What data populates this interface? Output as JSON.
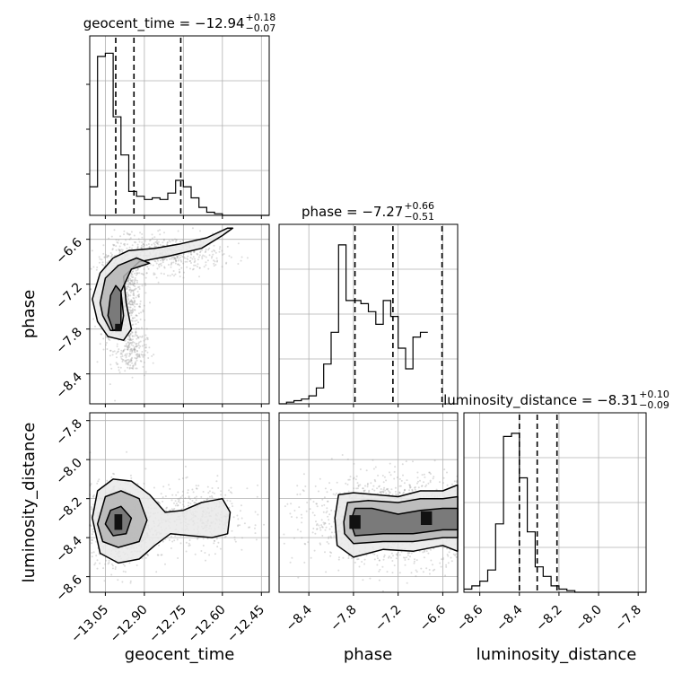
{
  "chart_data": {
    "type": "corner",
    "grid": true,
    "parameters": [
      {
        "name": "geocent_time",
        "range": [
          -13.11,
          -12.42
        ],
        "ticks": [
          -13.05,
          -12.9,
          -12.75,
          -12.6,
          -12.45
        ],
        "tick_labels": [
          "−13.05",
          "−12.90",
          "−12.75",
          "−12.60",
          "−12.45"
        ]
      },
      {
        "name": "phase",
        "range": [
          -8.8,
          -6.4
        ],
        "ticks": [
          -8.4,
          -7.8,
          -7.2,
          -6.6
        ],
        "tick_labels": [
          "−8.4",
          "−7.8",
          "−7.2",
          "−6.6"
        ]
      },
      {
        "name": "luminosity_distance",
        "range": [
          -8.68,
          -7.76
        ],
        "ticks": [
          -8.6,
          -8.4,
          -8.2,
          -8.0,
          -7.8
        ],
        "tick_labels": [
          "−8.6",
          "−8.4",
          "−8.2",
          "−8.0",
          "−7.8"
        ]
      }
    ],
    "titles": [
      {
        "main": "geocent_time = −12.94",
        "sup": "+0.18",
        "sub": "−0.07"
      },
      {
        "main": "phase = −7.27",
        "sup": "+0.66",
        "sub": "−0.51"
      },
      {
        "main": "luminosity_distance = −8.31",
        "sup": "+0.10",
        "sub": "−0.09"
      }
    ],
    "axis_labels": {
      "x": [
        "geocent_time",
        "phase",
        "luminosity_distance"
      ],
      "y": [
        "phase",
        "luminosity_distance"
      ]
    },
    "histograms": [
      {
        "param": "geocent_time",
        "bin_edges_start": -13.11,
        "bin_width": 0.03,
        "counts": [
          0.18,
          1.0,
          1.02,
          0.62,
          0.38,
          0.15,
          0.12,
          0.1,
          0.11,
          0.1,
          0.14,
          0.22,
          0.18,
          0.11,
          0.05,
          0.02,
          0.01,
          0,
          0,
          0,
          0,
          0,
          0
        ],
        "quantiles": [
          -13.01,
          -12.94,
          -12.76
        ]
      },
      {
        "param": "phase",
        "bin_edges_start": -8.8,
        "bin_width": 0.1,
        "counts": [
          0,
          0.01,
          0.02,
          0.03,
          0.05,
          0.1,
          0.25,
          0.45,
          1.0,
          0.65,
          0.65,
          0.63,
          0.58,
          0.5,
          0.65,
          0.55,
          0.35,
          0.22,
          0.42,
          0.45
        ],
        "quantiles": [
          -7.78,
          -7.27,
          -6.61
        ]
      },
      {
        "param": "luminosity_distance",
        "bin_edges_start": -8.68,
        "bin_width": 0.04,
        "counts": [
          0.02,
          0.04,
          0.07,
          0.14,
          0.43,
          0.98,
          1.0,
          0.72,
          0.38,
          0.16,
          0.1,
          0.04,
          0.02,
          0.01,
          0,
          0,
          0,
          0,
          0,
          0,
          0,
          0,
          0
        ],
        "quantiles": [
          -8.4,
          -8.31,
          -8.21
        ]
      }
    ],
    "joint_contours": [
      {
        "x": "geocent_time",
        "y": "phase",
        "levels": [
          [
            [
              -13.1,
              -7.4
            ],
            [
              -13.07,
              -7.05
            ],
            [
              -13.02,
              -6.85
            ],
            [
              -12.96,
              -6.75
            ],
            [
              -12.86,
              -6.72
            ],
            [
              -12.76,
              -6.66
            ],
            [
              -12.66,
              -6.58
            ],
            [
              -12.58,
              -6.45
            ],
            [
              -12.56,
              -6.45
            ],
            [
              -12.6,
              -6.55
            ],
            [
              -12.68,
              -6.72
            ],
            [
              -12.8,
              -6.82
            ],
            [
              -12.92,
              -6.9
            ],
            [
              -12.98,
              -7.1
            ],
            [
              -12.97,
              -7.45
            ],
            [
              -12.95,
              -7.8
            ],
            [
              -12.98,
              -7.95
            ],
            [
              -13.04,
              -7.9
            ],
            [
              -13.08,
              -7.7
            ]
          ],
          [
            [
              -13.07,
              -7.45
            ],
            [
              -13.05,
              -7.12
            ],
            [
              -13.0,
              -6.95
            ],
            [
              -12.93,
              -6.85
            ],
            [
              -12.88,
              -6.92
            ],
            [
              -12.95,
              -7.0
            ],
            [
              -12.99,
              -7.3
            ],
            [
              -12.98,
              -7.62
            ],
            [
              -12.99,
              -7.82
            ],
            [
              -13.03,
              -7.82
            ],
            [
              -13.06,
              -7.62
            ]
          ],
          [
            [
              -13.04,
              -7.62
            ],
            [
              -13.03,
              -7.35
            ],
            [
              -13.01,
              -7.22
            ],
            [
              -12.99,
              -7.3
            ],
            [
              -12.99,
              -7.55
            ],
            [
              -12.99,
              -7.78
            ],
            [
              -13.02,
              -7.82
            ]
          ]
        ]
      },
      {
        "x": "geocent_time",
        "y": "luminosity_distance",
        "levels": [
          [
            [
              -13.1,
              -8.3
            ],
            [
              -13.08,
              -8.16
            ],
            [
              -13.02,
              -8.1
            ],
            [
              -12.95,
              -8.11
            ],
            [
              -12.88,
              -8.18
            ],
            [
              -12.82,
              -8.27
            ],
            [
              -12.75,
              -8.26
            ],
            [
              -12.68,
              -8.22
            ],
            [
              -12.6,
              -8.2
            ],
            [
              -12.57,
              -8.27
            ],
            [
              -12.58,
              -8.38
            ],
            [
              -12.64,
              -8.4
            ],
            [
              -12.72,
              -8.39
            ],
            [
              -12.8,
              -8.38
            ],
            [
              -12.86,
              -8.44
            ],
            [
              -12.92,
              -8.51
            ],
            [
              -13.0,
              -8.53
            ],
            [
              -13.07,
              -8.48
            ]
          ],
          [
            [
              -13.08,
              -8.33
            ],
            [
              -13.05,
              -8.19
            ],
            [
              -12.99,
              -8.16
            ],
            [
              -12.92,
              -8.2
            ],
            [
              -12.89,
              -8.31
            ],
            [
              -12.92,
              -8.42
            ],
            [
              -13.0,
              -8.45
            ],
            [
              -13.06,
              -8.42
            ]
          ],
          [
            [
              -13.05,
              -8.33
            ],
            [
              -13.03,
              -8.26
            ],
            [
              -12.99,
              -8.24
            ],
            [
              -12.95,
              -8.3
            ],
            [
              -12.97,
              -8.38
            ],
            [
              -13.02,
              -8.39
            ]
          ]
        ]
      },
      {
        "x": "phase",
        "y": "luminosity_distance",
        "levels": [
          [
            [
              -8.05,
              -8.3
            ],
            [
              -8.0,
              -8.18
            ],
            [
              -7.8,
              -8.17
            ],
            [
              -7.5,
              -8.18
            ],
            [
              -7.2,
              -8.19
            ],
            [
              -6.9,
              -8.16
            ],
            [
              -6.6,
              -8.16
            ],
            [
              -6.4,
              -8.13
            ],
            [
              -6.4,
              -8.47
            ],
            [
              -6.6,
              -8.44
            ],
            [
              -7.0,
              -8.47
            ],
            [
              -7.4,
              -8.46
            ],
            [
              -7.8,
              -8.5
            ],
            [
              -8.02,
              -8.44
            ]
          ],
          [
            [
              -7.93,
              -8.32
            ],
            [
              -7.88,
              -8.22
            ],
            [
              -7.6,
              -8.21
            ],
            [
              -7.2,
              -8.22
            ],
            [
              -6.9,
              -8.2
            ],
            [
              -6.6,
              -8.2
            ],
            [
              -6.4,
              -8.19
            ],
            [
              -6.4,
              -8.4
            ],
            [
              -6.6,
              -8.4
            ],
            [
              -7.0,
              -8.42
            ],
            [
              -7.4,
              -8.42
            ],
            [
              -7.8,
              -8.43
            ],
            [
              -7.92,
              -8.38
            ]
          ],
          [
            [
              -7.84,
              -8.32
            ],
            [
              -7.78,
              -8.25
            ],
            [
              -7.55,
              -8.25
            ],
            [
              -7.2,
              -8.28
            ],
            [
              -6.9,
              -8.26
            ],
            [
              -6.6,
              -8.25
            ],
            [
              -6.4,
              -8.25
            ],
            [
              -6.4,
              -8.36
            ],
            [
              -6.6,
              -8.36
            ],
            [
              -7.0,
              -8.38
            ],
            [
              -7.4,
              -8.38
            ],
            [
              -7.78,
              -8.39
            ]
          ]
        ]
      }
    ]
  }
}
